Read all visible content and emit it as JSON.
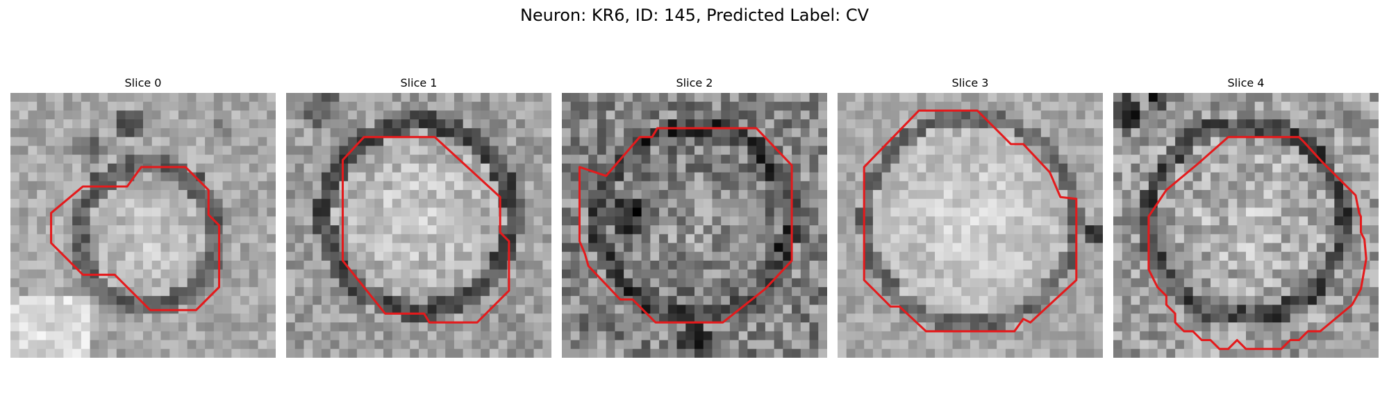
{
  "figure": {
    "title": "Neuron: KR6, ID: 145, Predicted Label: CV"
  },
  "panels": [
    {
      "title": "Slice 0"
    },
    {
      "title": "Slice 1"
    },
    {
      "title": "Slice 2"
    },
    {
      "title": "Slice 3"
    },
    {
      "title": "Slice 4"
    }
  ],
  "colors": {
    "contour": "#e41a1c",
    "background": "#ffffff",
    "text": "#000000"
  }
}
